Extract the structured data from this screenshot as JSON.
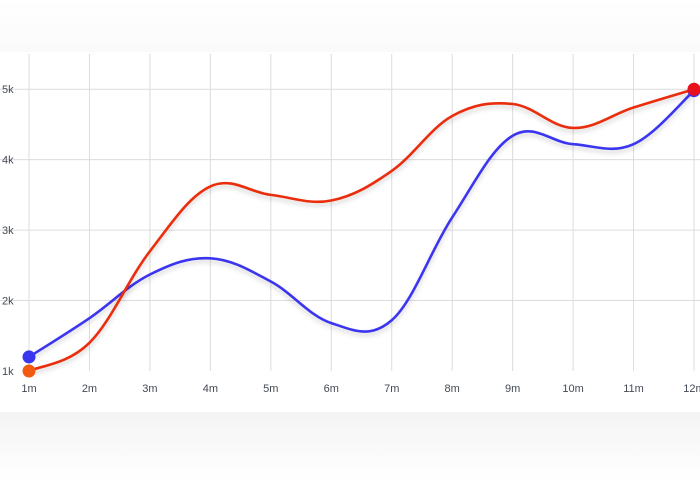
{
  "chart_data": {
    "type": "line",
    "x": [
      "1m",
      "2m",
      "3m",
      "4m",
      "5m",
      "6m",
      "7m",
      "8m",
      "9m",
      "10m",
      "11m",
      "12m"
    ],
    "y_ticks": [
      "1k",
      "2k",
      "3k",
      "4k",
      "5k"
    ],
    "ylim": [
      1000,
      5500
    ],
    "grid": true,
    "legend": "none",
    "series": [
      {
        "color": "#3a36ef",
        "values": [
          1200,
          1750,
          2370,
          2600,
          2270,
          1680,
          1720,
          3180,
          4340,
          4220,
          4220,
          4980
        ]
      },
      {
        "color": "#ea2d0e",
        "values": [
          1000,
          1400,
          2700,
          3620,
          3500,
          3420,
          3840,
          4620,
          4790,
          4450,
          4740,
          5000
        ]
      }
    ],
    "start_marker_colors": [
      "#3a36ef",
      "#f25a12"
    ],
    "end_marker_colors": [
      "#3a36ef",
      "#e8101a"
    ]
  }
}
